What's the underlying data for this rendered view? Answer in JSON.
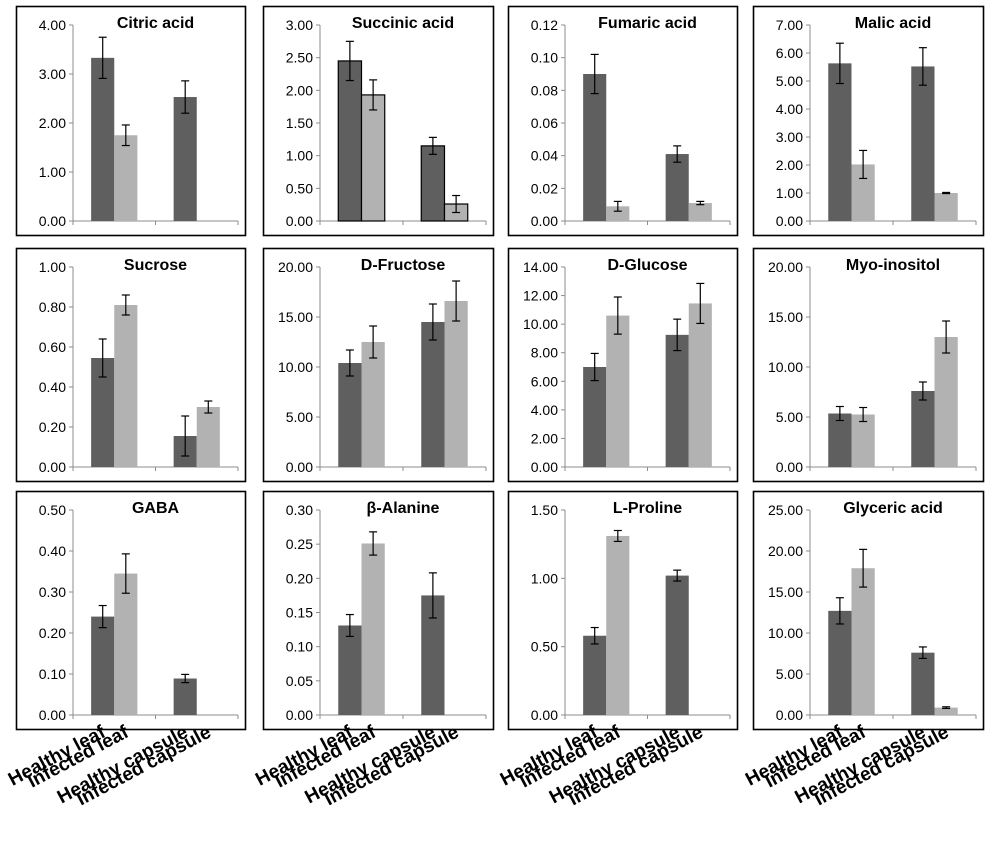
{
  "categories": [
    "Healthy leaf",
    "Infected leaf",
    "Healthy capsule",
    "Infected capsule"
  ],
  "colors": {
    "dark": "#5f5f5f",
    "light": "#b2b2b2",
    "frame": "#000000",
    "axis": "#8c8c8c",
    "text": "#000000"
  },
  "chart_data": [
    {
      "type": "bar",
      "title": "Citric acid",
      "ylim": [
        0,
        4
      ],
      "ticks": [
        "0.00",
        "1.00",
        "2.00",
        "3.00",
        "4.00"
      ],
      "bars": [
        {
          "value": 3.33,
          "err": 0.42
        },
        {
          "value": 1.75,
          "err": 0.21
        },
        {
          "value": 2.53,
          "err": 0.33
        },
        {
          "value": 0,
          "err": 0
        }
      ]
    },
    {
      "type": "bar",
      "title": "Succinic acid",
      "ylim": [
        0,
        3
      ],
      "ticks": [
        "0.00",
        "0.50",
        "1.00",
        "1.50",
        "2.00",
        "2.50",
        "3.00"
      ],
      "bars": [
        {
          "value": 2.45,
          "err": 0.3
        },
        {
          "value": 1.93,
          "err": 0.23
        },
        {
          "value": 1.15,
          "err": 0.13
        },
        {
          "value": 0.26,
          "err": 0.13
        }
      ]
    },
    {
      "type": "bar",
      "title": "Fumaric acid",
      "ylim": [
        0,
        0.12
      ],
      "ticks": [
        "0.00",
        "0.02",
        "0.04",
        "0.06",
        "0.08",
        "0.10",
        "0.12"
      ],
      "bars": [
        {
          "value": 0.09,
          "err": 0.012
        },
        {
          "value": 0.009,
          "err": 0.003
        },
        {
          "value": 0.041,
          "err": 0.005
        },
        {
          "value": 0.011,
          "err": 0.001
        }
      ]
    },
    {
      "type": "bar",
      "title": "Malic acid",
      "ylim": [
        0,
        7
      ],
      "ticks": [
        "0.00",
        "1.00",
        "2.00",
        "3.00",
        "4.00",
        "5.00",
        "6.00",
        "7.00"
      ],
      "bars": [
        {
          "value": 5.63,
          "err": 0.72
        },
        {
          "value": 2.02,
          "err": 0.5
        },
        {
          "value": 5.52,
          "err": 0.67
        },
        {
          "value": 1.0,
          "err": 0.02
        }
      ]
    },
    {
      "type": "bar",
      "title": "Sucrose",
      "ylim": [
        0,
        1
      ],
      "ticks": [
        "0.00",
        "0.20",
        "0.40",
        "0.60",
        "0.80",
        "1.00"
      ],
      "bars": [
        {
          "value": 0.545,
          "err": 0.095
        },
        {
          "value": 0.81,
          "err": 0.05
        },
        {
          "value": 0.155,
          "err": 0.1
        },
        {
          "value": 0.3,
          "err": 0.03
        }
      ]
    },
    {
      "type": "bar",
      "title": "D-Fructose",
      "ylim": [
        0,
        20
      ],
      "ticks": [
        "0.00",
        "5.00",
        "10.00",
        "15.00",
        "20.00"
      ],
      "bars": [
        {
          "value": 10.4,
          "err": 1.3
        },
        {
          "value": 12.5,
          "err": 1.6
        },
        {
          "value": 14.5,
          "err": 1.8
        },
        {
          "value": 16.6,
          "err": 2.0
        }
      ]
    },
    {
      "type": "bar",
      "title": "D-Glucose",
      "ylim": [
        0,
        14
      ],
      "ticks": [
        "0.00",
        "2.00",
        "4.00",
        "6.00",
        "8.00",
        "10.00",
        "12.00",
        "14.00"
      ],
      "bars": [
        {
          "value": 7.0,
          "err": 0.95
        },
        {
          "value": 10.6,
          "err": 1.3
        },
        {
          "value": 9.25,
          "err": 1.1
        },
        {
          "value": 11.45,
          "err": 1.4
        }
      ]
    },
    {
      "type": "bar",
      "title": "Myo-inositol",
      "ylim": [
        0,
        20
      ],
      "ticks": [
        "0.00",
        "5.00",
        "10.00",
        "15.00",
        "20.00"
      ],
      "bars": [
        {
          "value": 5.35,
          "err": 0.7
        },
        {
          "value": 5.25,
          "err": 0.7
        },
        {
          "value": 7.6,
          "err": 0.9
        },
        {
          "value": 13.0,
          "err": 1.6
        }
      ]
    },
    {
      "type": "bar",
      "title": "GABA",
      "ylim": [
        0,
        0.5
      ],
      "ticks": [
        "0.00",
        "0.10",
        "0.20",
        "0.30",
        "0.40",
        "0.50"
      ],
      "bars": [
        {
          "value": 0.24,
          "err": 0.027
        },
        {
          "value": 0.345,
          "err": 0.048
        },
        {
          "value": 0.089,
          "err": 0.01
        },
        {
          "value": 0,
          "err": 0
        }
      ]
    },
    {
      "type": "bar",
      "title": "β-Alanine",
      "ylim": [
        0,
        0.3
      ],
      "ticks": [
        "0.00",
        "0.05",
        "0.10",
        "0.15",
        "0.20",
        "0.25",
        "0.30"
      ],
      "bars": [
        {
          "value": 0.131,
          "err": 0.016
        },
        {
          "value": 0.251,
          "err": 0.017
        },
        {
          "value": 0.175,
          "err": 0.033
        },
        {
          "value": 0,
          "err": 0
        }
      ]
    },
    {
      "type": "bar",
      "title": "L-Proline",
      "ylim": [
        0,
        1.5
      ],
      "ticks": [
        "0.00",
        "0.50",
        "1.00",
        "1.50"
      ],
      "bars": [
        {
          "value": 0.58,
          "err": 0.06
        },
        {
          "value": 1.31,
          "err": 0.04
        },
        {
          "value": 1.02,
          "err": 0.04
        },
        {
          "value": 0,
          "err": 0
        }
      ]
    },
    {
      "type": "bar",
      "title": "Glyceric acid",
      "ylim": [
        0,
        25
      ],
      "ticks": [
        "0.00",
        "5.00",
        "10.00",
        "15.00",
        "20.00",
        "25.00"
      ],
      "bars": [
        {
          "value": 12.7,
          "err": 1.6
        },
        {
          "value": 17.9,
          "err": 2.3
        },
        {
          "value": 7.6,
          "err": 0.7
        },
        {
          "value": 0.9,
          "err": 0.1
        }
      ]
    }
  ]
}
